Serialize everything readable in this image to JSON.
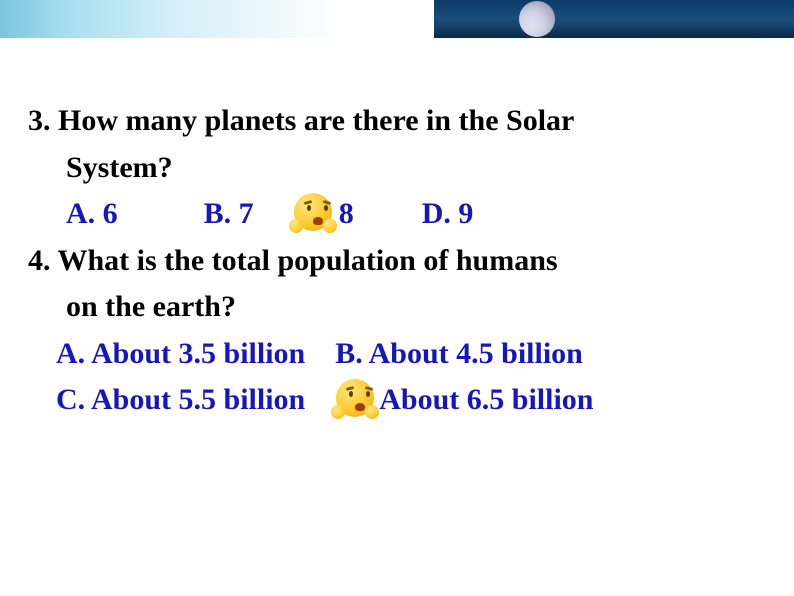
{
  "questions": [
    {
      "number": "3.",
      "text_line1": "3. How many planets are there in the Solar",
      "text_line2": "System?",
      "options": {
        "a": "A. 6",
        "b": "B. 7",
        "c": "8",
        "d": "D. 9"
      },
      "correct_marker_before": "c"
    },
    {
      "number": "4.",
      "text_line1": "4. What is the total population of humans",
      "text_line2": "on the earth?",
      "options_row1": {
        "a": "A. About 3.5 billion",
        "b": "B.  About 4.5 billion"
      },
      "options_row2": {
        "c": "C. About 5.5 billion",
        "d": "About 6.5 billion"
      },
      "correct_marker_before": "d"
    }
  ],
  "colors": {
    "question_text": "#000000",
    "option_text": "#1616c1",
    "background": "#ffffff",
    "top_gradient_start": "#7cc4e0",
    "top_gradient_dark": "#0a3a6a"
  },
  "typography": {
    "font_family": "Times New Roman",
    "font_size": 30,
    "font_weight": "bold"
  }
}
